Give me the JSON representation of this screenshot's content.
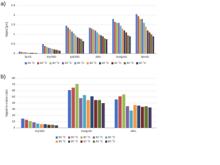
{
  "chart_data": [
    {
      "type": "bar",
      "panel_label": "a)",
      "y_label": "Signal [pA]",
      "categories": [
        "lauric",
        "myristic",
        "palmitic",
        "oleic",
        "margaric",
        "stearic"
      ],
      "ylim": [
        0,
        2.5
      ],
      "yticks": [
        0,
        0.5,
        1,
        1.5,
        2,
        2.5
      ],
      "grid": true,
      "series": [
        {
          "name": "25 °C",
          "color": "#4472c4",
          "values": [
            0.1,
            0.5,
            1.45,
            1.35,
            1.8,
            2.05
          ]
        },
        {
          "name": "28 °C",
          "color": "#c0504d",
          "values": [
            0.08,
            0.4,
            1.35,
            1.3,
            1.65,
            1.95
          ]
        },
        {
          "name": "30 °C",
          "color": "#9bbb59",
          "values": [
            0.07,
            0.35,
            1.25,
            1.25,
            1.6,
            1.8
          ]
        },
        {
          "name": "33 °C",
          "color": "#8064a2",
          "values": [
            0.06,
            0.3,
            1.15,
            1.2,
            1.6,
            1.8
          ]
        },
        {
          "name": "35 °C",
          "color": "#4bacc6",
          "values": [
            0.05,
            0.28,
            1.05,
            1.1,
            1.45,
            1.6
          ]
        },
        {
          "name": "38 °C",
          "color": "#f79646",
          "values": [
            0.05,
            0.25,
            0.95,
            1.0,
            1.3,
            1.4
          ]
        },
        {
          "name": "40 °C",
          "color": "#2c4d75",
          "values": [
            0.04,
            0.22,
            0.85,
            0.95,
            1.2,
            1.2
          ]
        },
        {
          "name": "42 °C",
          "color": "#772c2a",
          "values": [
            0.04,
            0.2,
            0.8,
            0.9,
            1.1,
            1.1
          ]
        },
        {
          "name": "45 °C",
          "color": "#5f7530",
          "values": [
            0.03,
            0.18,
            0.75,
            0.8,
            0.95,
            1.0
          ]
        },
        {
          "name": "50 °C",
          "color": "#4d3b62",
          "values": [
            0.03,
            0.15,
            0.65,
            0.75,
            0.9,
            0.9
          ]
        }
      ]
    },
    {
      "type": "bar",
      "panel_label": "b)",
      "y_label": "Signal-to-noise ratio",
      "categories": [
        "myristic",
        "margaric",
        "oleic"
      ],
      "ylim": [
        0,
        80
      ],
      "yticks": [
        0,
        10,
        20,
        30,
        40,
        50,
        60,
        70,
        80
      ],
      "grid": true,
      "series": [
        {
          "name": "25 °C",
          "color": "#4472c4",
          "values": [
            15,
            61,
            46
          ]
        },
        {
          "name": "28 °C",
          "color": "#c0504d",
          "values": [
            13,
            65,
            51
          ]
        },
        {
          "name": "30 °C",
          "color": "#9bbb59",
          "values": [
            11,
            71,
            54
          ]
        },
        {
          "name": "33 °C",
          "color": "#8064a2",
          "values": [
            9,
            48,
            35
          ]
        },
        {
          "name": "35 °C",
          "color": "#4bacc6",
          "values": [
            7,
            53,
            28
          ]
        },
        {
          "name": "38 °C",
          "color": "#f79646",
          "values": [
            6,
            45,
            37
          ]
        },
        {
          "name": "40 °C",
          "color": "#2c4d75",
          "values": [
            6,
            51,
            36
          ]
        },
        {
          "name": "42 °C",
          "color": "#772c2a",
          "values": [
            5,
            45,
            34
          ]
        },
        {
          "name": "45 °C",
          "color": "#5f7530",
          "values": [
            5,
            45,
            35
          ]
        },
        {
          "name": "50 °C",
          "color": "#4d3b62",
          "values": [
            4,
            40,
            33
          ]
        }
      ]
    }
  ]
}
